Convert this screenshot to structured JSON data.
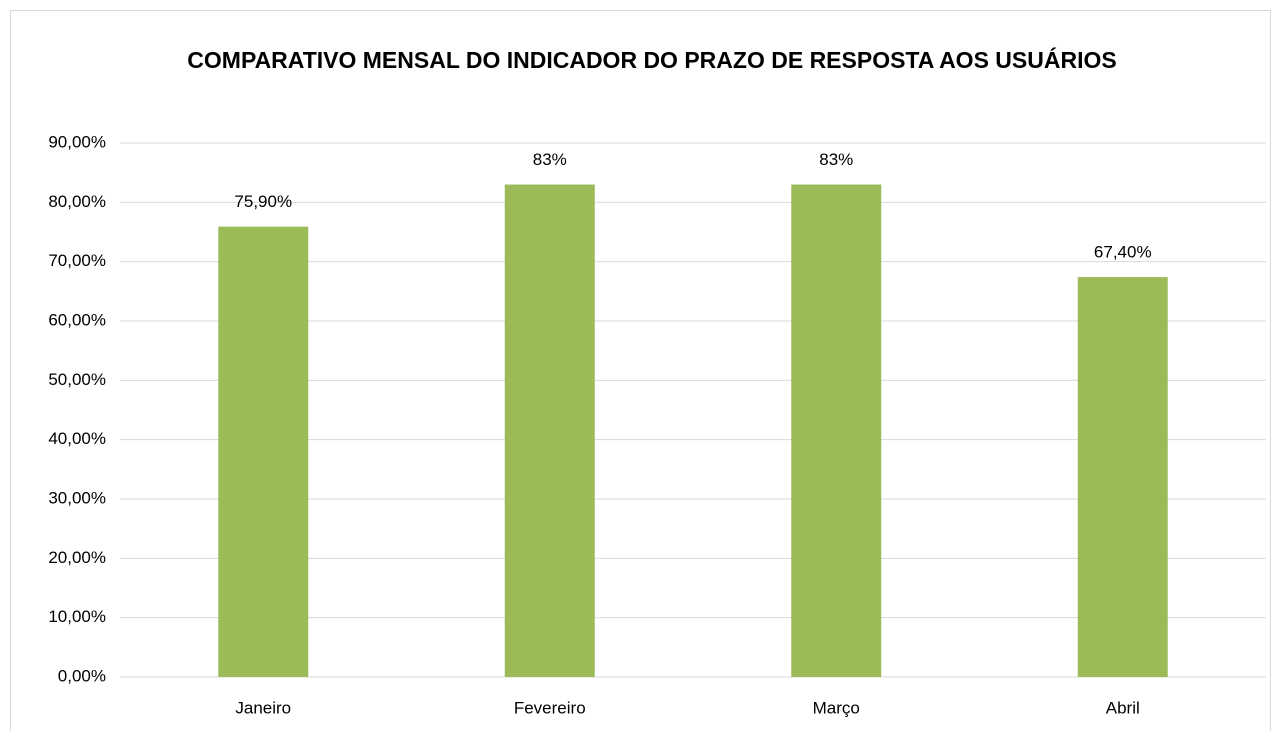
{
  "chart_data": {
    "type": "bar",
    "title": "COMPARATIVO MENSAL DO INDICADOR DO PRAZO DE RESPOSTA AOS USUÁRIOS",
    "categories": [
      "Janeiro",
      "Fevereiro",
      "Março",
      "Abril"
    ],
    "values": [
      75.9,
      83,
      83,
      67.4
    ],
    "value_labels": [
      "75,90%",
      "83%",
      "83%",
      "67,40%"
    ],
    "color": "#9bbb59",
    "ylim": [
      0,
      90
    ],
    "yticks": [
      {
        "value": 0,
        "label": "0,00%"
      },
      {
        "value": 10,
        "label": "10,00%"
      },
      {
        "value": 20,
        "label": "20,00%"
      },
      {
        "value": 30,
        "label": "30,00%"
      },
      {
        "value": 40,
        "label": "40,00%"
      },
      {
        "value": 50,
        "label": "50,00%"
      },
      {
        "value": 60,
        "label": "60,00%"
      },
      {
        "value": 70,
        "label": "70,00%"
      },
      {
        "value": 80,
        "label": "80,00%"
      },
      {
        "value": 90,
        "label": "90,00%"
      }
    ],
    "grid": true
  }
}
